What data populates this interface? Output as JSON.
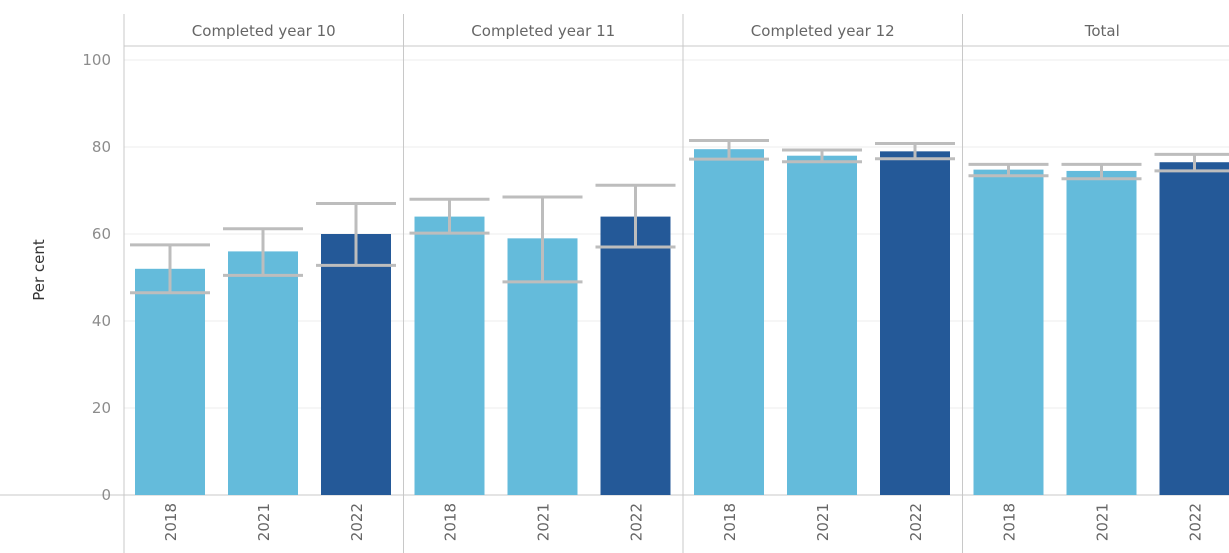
{
  "chart_data": {
    "type": "bar",
    "ylabel": "Per cent",
    "xlabel": "",
    "ylim": [
      0,
      100
    ],
    "yticks": [
      0,
      20,
      40,
      60,
      80,
      100
    ],
    "grid": true,
    "colors": {
      "light_bar": "#64bbdb",
      "dark_bar": "#245998",
      "error_bar": "#bdbdbd",
      "grid": "#ececec",
      "divider": "#c8c8c8"
    },
    "panels": [
      {
        "label": "Completed year 10",
        "bars": [
          {
            "year": "2018",
            "value": 52,
            "low": 46.5,
            "high": 57.5,
            "color": "light"
          },
          {
            "year": "2021",
            "value": 56,
            "low": 50.5,
            "high": 61.2,
            "color": "light"
          },
          {
            "year": "2022",
            "value": 60,
            "low": 52.8,
            "high": 67.0,
            "color": "dark"
          }
        ]
      },
      {
        "label": "Completed year 11",
        "bars": [
          {
            "year": "2018",
            "value": 64,
            "low": 60.2,
            "high": 68.0,
            "color": "light"
          },
          {
            "year": "2021",
            "value": 59,
            "low": 49.0,
            "high": 68.5,
            "color": "light"
          },
          {
            "year": "2022",
            "value": 64,
            "low": 57.0,
            "high": 71.2,
            "color": "dark"
          }
        ]
      },
      {
        "label": "Completed year 12",
        "bars": [
          {
            "year": "2018",
            "value": 79.5,
            "low": 77.2,
            "high": 81.5,
            "color": "light"
          },
          {
            "year": "2021",
            "value": 78,
            "low": 76.6,
            "high": 79.3,
            "color": "light"
          },
          {
            "year": "2022",
            "value": 79,
            "low": 77.3,
            "high": 80.8,
            "color": "dark"
          }
        ]
      },
      {
        "label": "Total",
        "bars": [
          {
            "year": "2018",
            "value": 74.8,
            "low": 73.4,
            "high": 76.0,
            "color": "light"
          },
          {
            "year": "2021",
            "value": 74.5,
            "low": 72.7,
            "high": 76.0,
            "color": "light"
          },
          {
            "year": "2022",
            "value": 76.5,
            "low": 74.5,
            "high": 78.3,
            "color": "dark"
          }
        ]
      }
    ]
  }
}
